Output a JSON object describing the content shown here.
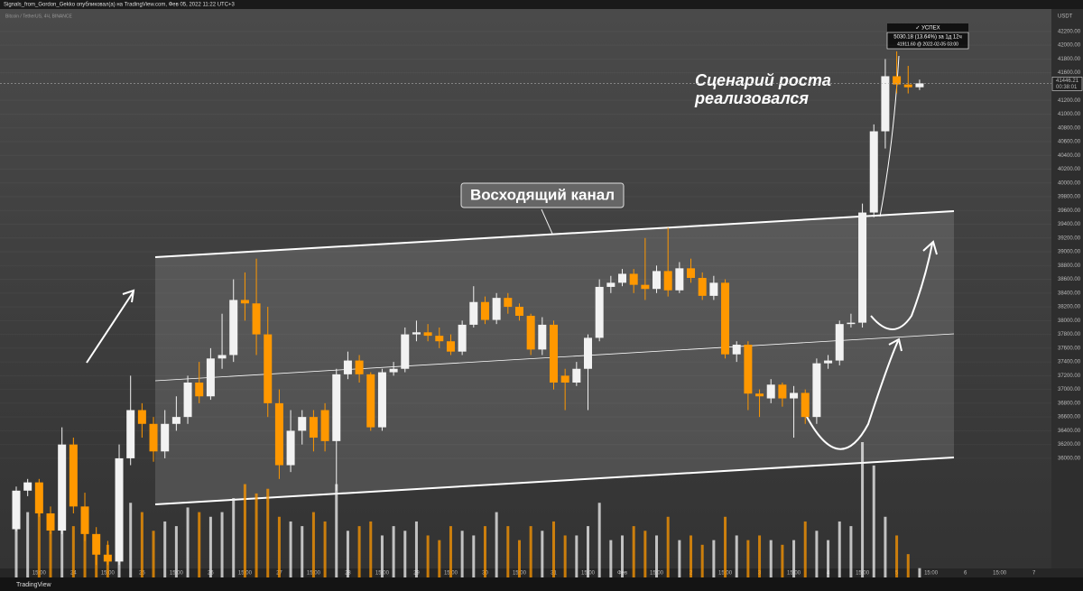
{
  "header": {
    "publisher": "Signals_from_Gordon_Gekko опубликовал(а) на TradingView.com, Фев 05, 2022 11:22 UTC+3",
    "symbol": "Bitcoin / TetherUS, 4Ч, BINANCE",
    "currency": "USDT",
    "footer": "TradingView"
  },
  "chart_data": {
    "type": "candlestick",
    "annotations": {
      "channel": "Восходящий канал",
      "scenario_line1": "Сценарий роста",
      "scenario_line2": "реализовался",
      "status": "✓ УСПЕХ",
      "change": "5030.18 (13.64%) за 1д 12ч",
      "peak": "41911.60 @ 2022-02-05 03:00",
      "countdown": "00:38:01"
    },
    "last_price": 41446.21,
    "last_price_label": "41446.21",
    "up_color": "#f2f2f2",
    "down_color": "#ff9800",
    "ylim": [
      34400,
      42500
    ],
    "yticks": [
      {
        "value": 36000,
        "label": "36000.00"
      },
      {
        "value": 36200,
        "label": "36200.00"
      },
      {
        "value": 36400,
        "label": "36400.00"
      },
      {
        "value": 36600,
        "label": "36600.00"
      },
      {
        "value": 36800,
        "label": "36800.00"
      },
      {
        "value": 37000,
        "label": "37000.00"
      },
      {
        "value": 37200,
        "label": "37200.00"
      },
      {
        "value": 37400,
        "label": "37400.00"
      },
      {
        "value": 37600,
        "label": "37600.00"
      },
      {
        "value": 37800,
        "label": "37800.00"
      },
      {
        "value": 38000,
        "label": "38000.00"
      },
      {
        "value": 38200,
        "label": "38200.00"
      },
      {
        "value": 38400,
        "label": "38400.00"
      },
      {
        "value": 38600,
        "label": "38600.00"
      },
      {
        "value": 38800,
        "label": "38800.00"
      },
      {
        "value": 39000,
        "label": "39000.00"
      },
      {
        "value": 39200,
        "label": "39200.00"
      },
      {
        "value": 39400,
        "label": "39400.00"
      },
      {
        "value": 39600,
        "label": "39600.00"
      },
      {
        "value": 39800,
        "label": "39800.00"
      },
      {
        "value": 40000,
        "label": "40000.00"
      },
      {
        "value": 40200,
        "label": "40200.00"
      },
      {
        "value": 40400,
        "label": "40400.00"
      },
      {
        "value": 40600,
        "label": "40600.00"
      },
      {
        "value": 40800,
        "label": "40800.00"
      },
      {
        "value": 41000,
        "label": "41000.00"
      },
      {
        "value": 41200,
        "label": "41200.00"
      },
      {
        "value": 41600,
        "label": "41600.00"
      },
      {
        "value": 41800,
        "label": "41800.00"
      },
      {
        "value": 42000,
        "label": "42000.00"
      },
      {
        "value": 42200,
        "label": "42200.00"
      }
    ],
    "xlabels": [
      "15:00",
      "24",
      "15:00",
      "25",
      "15:00",
      "26",
      "15:00",
      "27",
      "15:00",
      "28",
      "15:00",
      "29",
      "15:00",
      "30",
      "15:00",
      "31",
      "15:00",
      "Фев",
      "15:00",
      "2",
      "15:00",
      "3",
      "15:00",
      "4",
      "15:00",
      "5",
      "15:00",
      "6",
      "15:00",
      "7"
    ],
    "open": [
      34970,
      35530,
      35650,
      35200,
      34950,
      36200,
      35300,
      34900,
      34600,
      34500,
      36000,
      36700,
      36500,
      36100,
      36500,
      36600,
      37100,
      36900,
      37450,
      37500,
      38300,
      38250,
      37800,
      36800,
      35900,
      36400,
      36600,
      36700,
      36250,
      37220,
      37420,
      37220,
      36450,
      37250,
      37300,
      37800,
      37830,
      37780,
      37700,
      37550,
      37940,
      38270,
      38010,
      38330,
      38200,
      38070,
      37580,
      37940,
      37200,
      37100,
      37300,
      37750,
      38490,
      38550,
      38680,
      38520,
      38460,
      38720,
      38440,
      38760,
      38620,
      38360,
      38550,
      37510,
      37650,
      36940,
      36870,
      37070,
      36870,
      36950,
      36600,
      37380,
      37420,
      37950,
      37970,
      39570,
      40750,
      41550,
      41430,
      41390
    ],
    "high": [
      35590,
      35700,
      35700,
      35300,
      36450,
      36300,
      35500,
      35000,
      34800,
      36200,
      37200,
      36800,
      36600,
      36700,
      36900,
      37200,
      37400,
      37600,
      38100,
      38600,
      38700,
      38900,
      38200,
      37000,
      36700,
      36700,
      36700,
      36800,
      37300,
      37550,
      37500,
      37250,
      37300,
      37400,
      37900,
      38000,
      37950,
      37900,
      37800,
      38000,
      38500,
      38350,
      38400,
      38400,
      38250,
      38100,
      38050,
      38000,
      37300,
      37400,
      37800,
      38600,
      38650,
      38750,
      38750,
      39200,
      38800,
      39350,
      38850,
      38900,
      38700,
      38650,
      38600,
      37700,
      37700,
      37000,
      37150,
      37100,
      37050,
      37000,
      37450,
      37500,
      38000,
      38100,
      39700,
      40850,
      41800,
      41911.6,
      41700,
      41500
    ],
    "low": [
      34940,
      35450,
      35150,
      34900,
      34900,
      35200,
      34800,
      34450,
      34450,
      34450,
      35900,
      36300,
      35950,
      36000,
      36400,
      36500,
      36800,
      36850,
      37300,
      37400,
      38000,
      37500,
      36600,
      35700,
      35800,
      36200,
      36100,
      36100,
      35530,
      37150,
      37100,
      36400,
      36400,
      37200,
      37250,
      37700,
      37700,
      37600,
      37500,
      37500,
      37900,
      37950,
      37950,
      38100,
      38000,
      37500,
      37500,
      37000,
      36700,
      37050,
      36700,
      37700,
      38400,
      38500,
      38400,
      38300,
      38400,
      38350,
      38400,
      38550,
      38300,
      38300,
      37450,
      37400,
      36700,
      36600,
      36800,
      36750,
      36300,
      36500,
      36500,
      37300,
      37350,
      37900,
      37900,
      39500,
      40500,
      41300,
      41300,
      41350
    ],
    "close": [
      35530,
      35650,
      35200,
      34950,
      36200,
      35300,
      34900,
      34600,
      34500,
      36000,
      36700,
      36500,
      36100,
      36500,
      36600,
      37100,
      36900,
      37450,
      37500,
      38300,
      38250,
      37800,
      36800,
      35900,
      36400,
      36600,
      36300,
      36250,
      37220,
      37420,
      37220,
      36450,
      37250,
      37300,
      37800,
      37830,
      37780,
      37700,
      37550,
      37940,
      38270,
      38010,
      38330,
      38200,
      38070,
      37580,
      37940,
      37100,
      37100,
      37300,
      37750,
      38490,
      38550,
      38680,
      38520,
      38460,
      38720,
      38440,
      38760,
      38620,
      38360,
      38550,
      37510,
      37650,
      36940,
      36900,
      37070,
      36870,
      36950,
      36600,
      37380,
      37420,
      37950,
      37970,
      39570,
      40750,
      41550,
      41430,
      41390,
      41446.21
    ],
    "volume": [
      60,
      70,
      75,
      50,
      95,
      55,
      60,
      40,
      35,
      100,
      80,
      70,
      50,
      60,
      55,
      75,
      70,
      65,
      70,
      85,
      100,
      90,
      95,
      65,
      60,
      55,
      70,
      60,
      100,
      50,
      55,
      60,
      45,
      55,
      50,
      60,
      45,
      40,
      55,
      50,
      45,
      55,
      70,
      55,
      40,
      55,
      50,
      60,
      45,
      45,
      55,
      80,
      40,
      45,
      55,
      50,
      45,
      65,
      40,
      45,
      35,
      40,
      65,
      45,
      40,
      45,
      40,
      35,
      40,
      60,
      50,
      40,
      60,
      55,
      145,
      120,
      65,
      45,
      25,
      10
    ]
  }
}
